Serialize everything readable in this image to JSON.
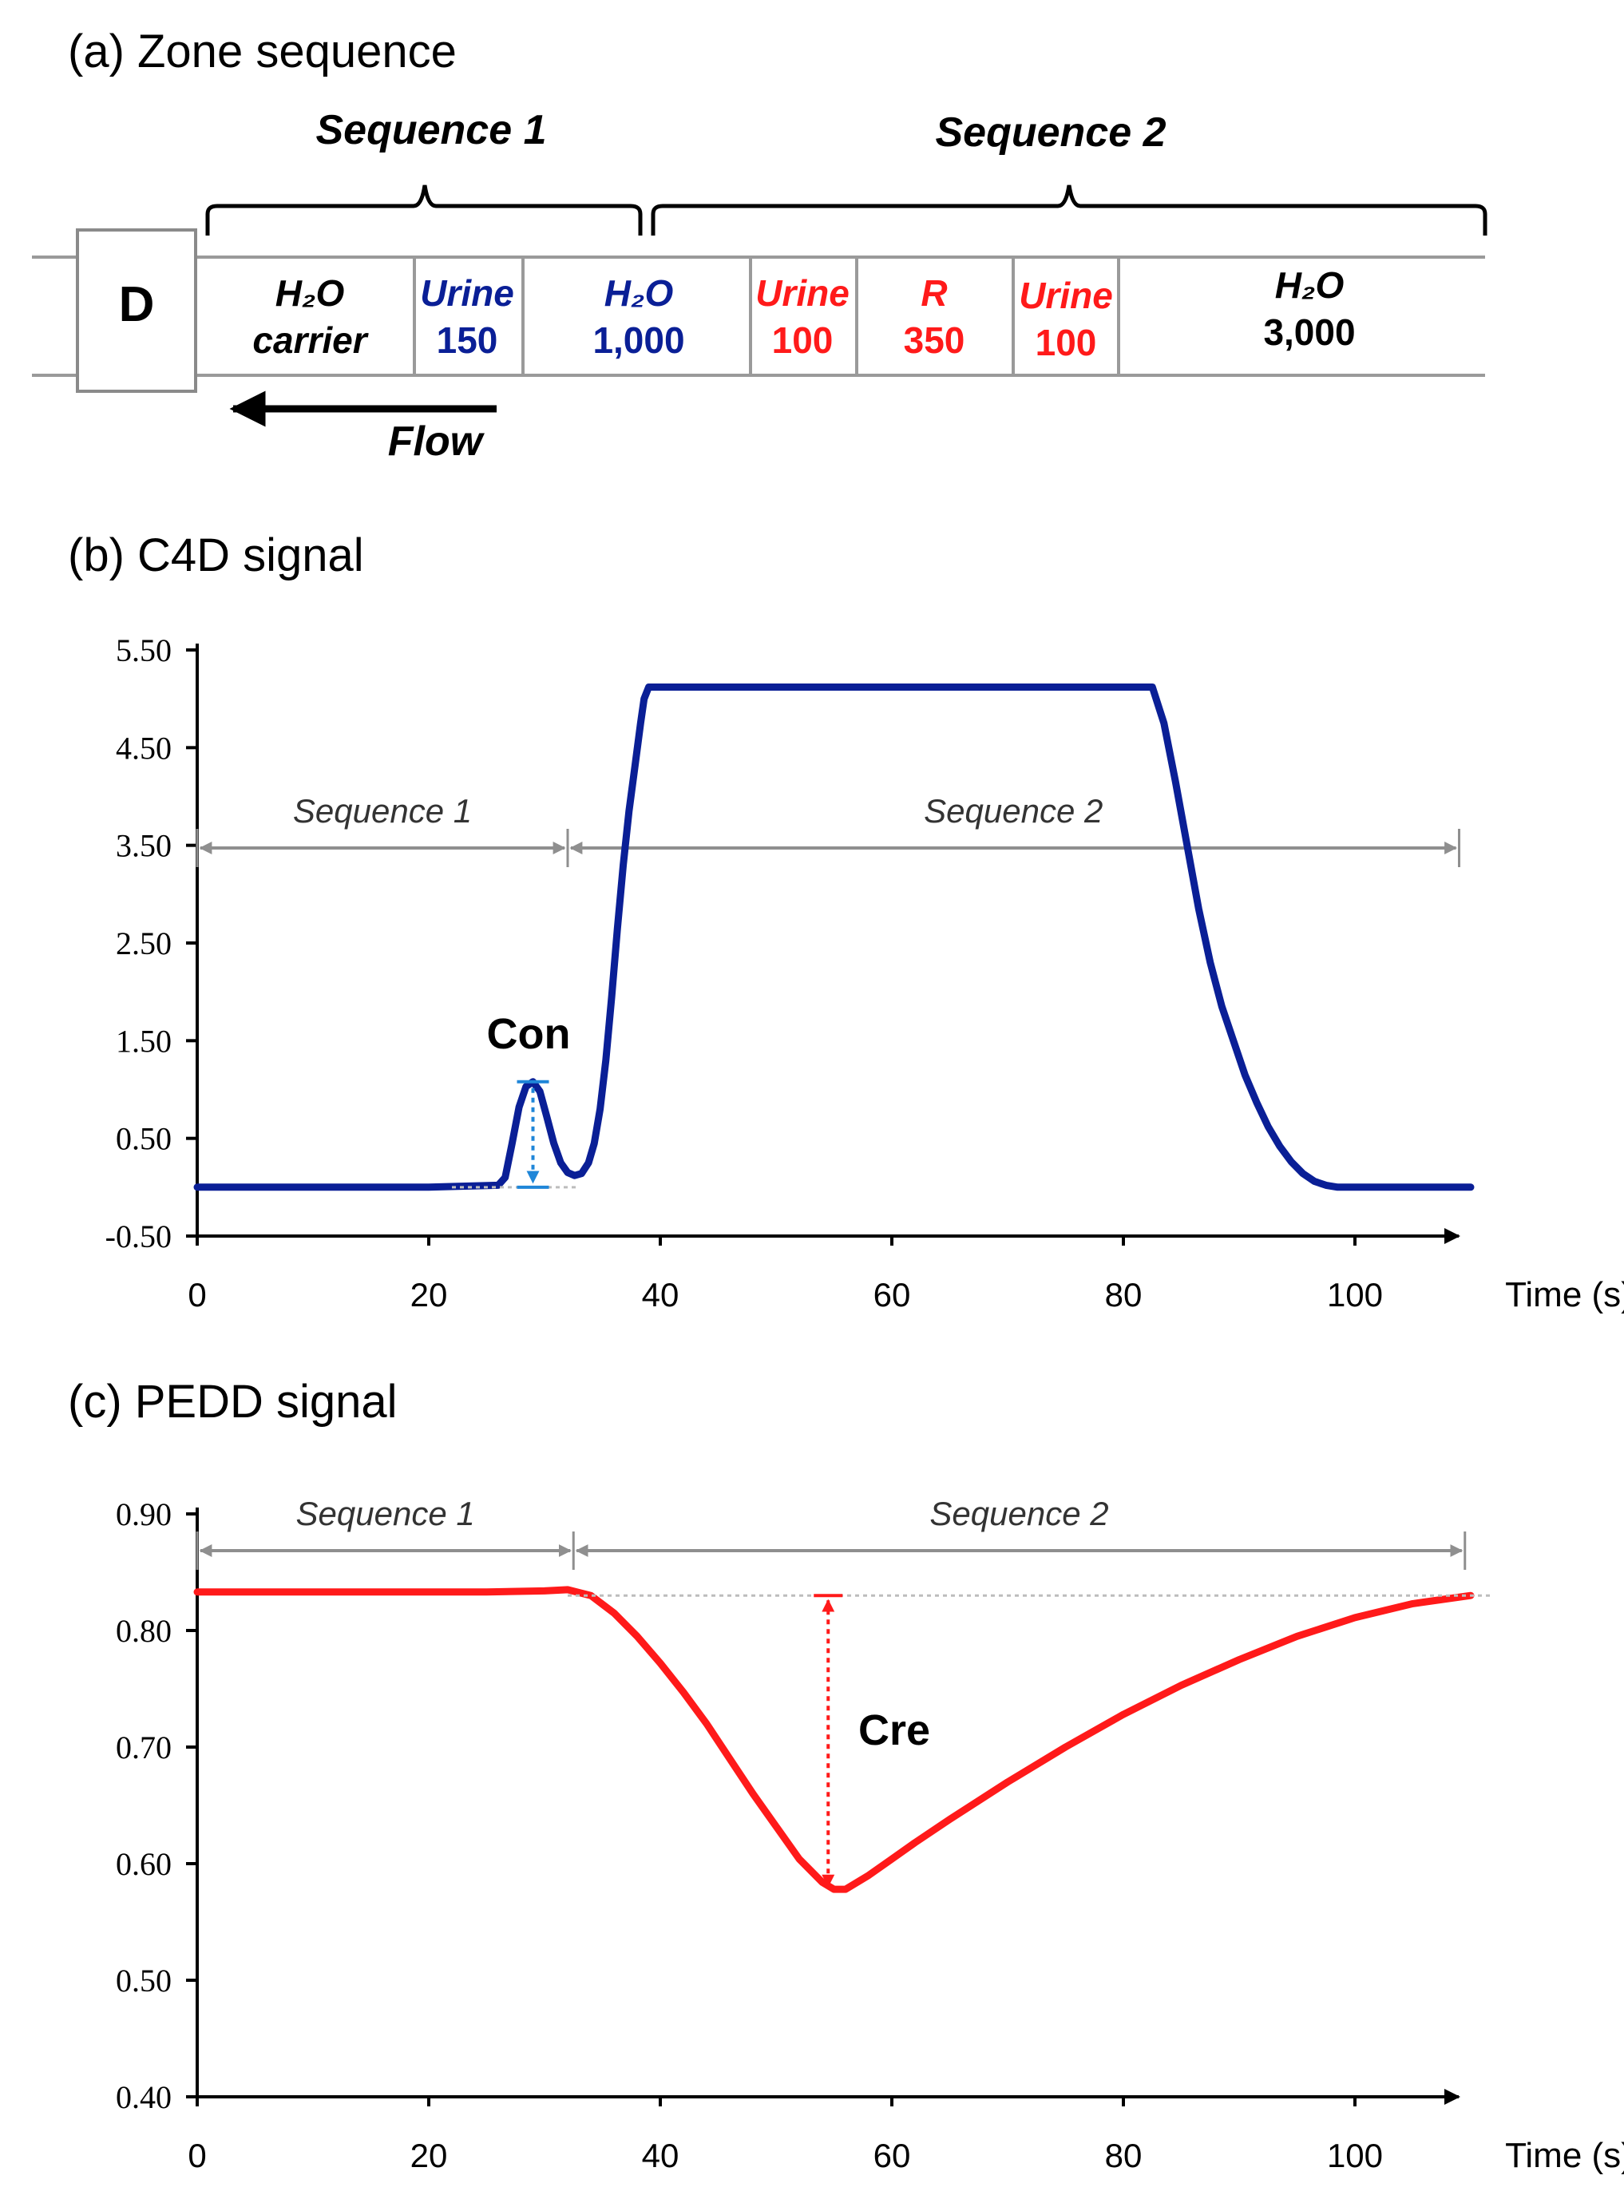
{
  "colors": {
    "blue": "#0a1f96",
    "red": "#ff1a1a",
    "gray": "#8f8f8f",
    "light_blue": "#1f86d8",
    "black": "#000000"
  },
  "zone_sequence": {
    "panel_title": "(a) Zone sequence",
    "sequence_1_label": "Sequence 1",
    "sequence_2_label": "Sequence 2",
    "detector_label": "D",
    "flow_label": "Flow",
    "zones": [
      {
        "line1": "H₂O",
        "line2": "carrier",
        "color": "black",
        "volume": null
      },
      {
        "line1": "Urine",
        "line2": "150",
        "color": "blue",
        "volume": 150
      },
      {
        "line1": "H₂O",
        "line2": "1,000",
        "color": "blue",
        "volume": 1000
      },
      {
        "line1": "Urine",
        "line2": "100",
        "color": "red",
        "volume": 100
      },
      {
        "line1": "R",
        "line2": "350",
        "color": "red",
        "volume": 350
      },
      {
        "line1": "Urine",
        "line2": "100",
        "color": "red",
        "volume": 100
      },
      {
        "line1": "H₂O",
        "line2": "3,000",
        "color": "black",
        "volume": 3000
      }
    ]
  },
  "chart_data": [
    {
      "type": "line",
      "title": "(b) C4D signal",
      "xlabel": "Time (s)",
      "ylabel": "",
      "xlim": [
        0,
        110
      ],
      "ylim": [
        -0.5,
        5.5
      ],
      "x_ticks": [
        "0",
        "20",
        "40",
        "60",
        "80",
        "100"
      ],
      "y_ticks": [
        "5.50",
        "4.50",
        "3.50",
        "2.50",
        "1.50",
        "0.50",
        "-0.50"
      ],
      "annotations": {
        "peak_label": "Con",
        "sequence_1": "Sequence 1",
        "sequence_2": "Sequence 2"
      },
      "sequence_boundaries": [
        0,
        32,
        109
      ],
      "baseline": 0.0,
      "series": [
        {
          "name": "C4D signal",
          "color": "#0a1f96",
          "x": [
            0,
            10,
            20,
            26.0,
            26.6,
            27.2,
            27.8,
            28.4,
            29.0,
            29.6,
            30.2,
            30.8,
            31.4,
            32.0,
            32.6,
            33.2,
            33.8,
            34.3,
            34.8,
            35.3,
            35.8,
            36.3,
            36.8,
            37.3,
            37.8,
            38.3,
            38.6,
            39.0,
            40,
            50,
            60,
            70,
            80,
            82.5,
            83.5,
            84.5,
            85.5,
            86.5,
            87.5,
            88.5,
            89.5,
            90.5,
            91.5,
            92.5,
            93.5,
            94.5,
            95.5,
            96.5,
            97.5,
            98.5,
            99.5,
            100.5,
            102,
            105,
            110
          ],
          "values": [
            0.0,
            0.0,
            0.0,
            0.02,
            0.1,
            0.45,
            0.82,
            1.03,
            1.08,
            0.98,
            0.72,
            0.45,
            0.25,
            0.15,
            0.12,
            0.14,
            0.25,
            0.45,
            0.8,
            1.3,
            1.95,
            2.65,
            3.3,
            3.85,
            4.3,
            4.75,
            5.0,
            5.12,
            5.12,
            5.12,
            5.12,
            5.12,
            5.12,
            5.12,
            4.75,
            4.15,
            3.5,
            2.85,
            2.3,
            1.85,
            1.5,
            1.15,
            0.87,
            0.62,
            0.42,
            0.26,
            0.14,
            0.06,
            0.02,
            0.0,
            0.0,
            0.0,
            0.0,
            0.0,
            0.0
          ]
        }
      ]
    },
    {
      "type": "line",
      "title": "(c) PEDD signal",
      "xlabel": "Time (s)",
      "ylabel": "",
      "xlim": [
        0,
        110
      ],
      "ylim": [
        0.4,
        0.9
      ],
      "x_ticks": [
        "0",
        "20",
        "40",
        "60",
        "80",
        "100"
      ],
      "y_ticks": [
        "0.90",
        "0.80",
        "0.70",
        "0.60",
        "0.50",
        "0.40"
      ],
      "annotations": {
        "dip_label": "Cre",
        "sequence_1": "Sequence 1",
        "sequence_2": "Sequence 2"
      },
      "sequence_boundaries": [
        0,
        32.5,
        109.5
      ],
      "baseline": 0.83,
      "series": [
        {
          "name": "PEDD signal",
          "color": "#ff1a1a",
          "x": [
            0,
            10,
            20,
            25,
            30,
            32,
            34,
            36,
            38,
            40,
            42,
            44,
            46,
            48,
            50,
            52,
            54,
            55,
            56,
            58,
            60,
            62,
            65,
            70,
            75,
            80,
            85,
            90,
            95,
            100,
            105,
            110
          ],
          "values": [
            0.833,
            0.833,
            0.833,
            0.833,
            0.834,
            0.835,
            0.83,
            0.815,
            0.795,
            0.772,
            0.747,
            0.72,
            0.69,
            0.66,
            0.632,
            0.604,
            0.584,
            0.578,
            0.578,
            0.59,
            0.604,
            0.618,
            0.638,
            0.67,
            0.7,
            0.728,
            0.753,
            0.775,
            0.795,
            0.811,
            0.823,
            0.83
          ]
        }
      ]
    }
  ]
}
